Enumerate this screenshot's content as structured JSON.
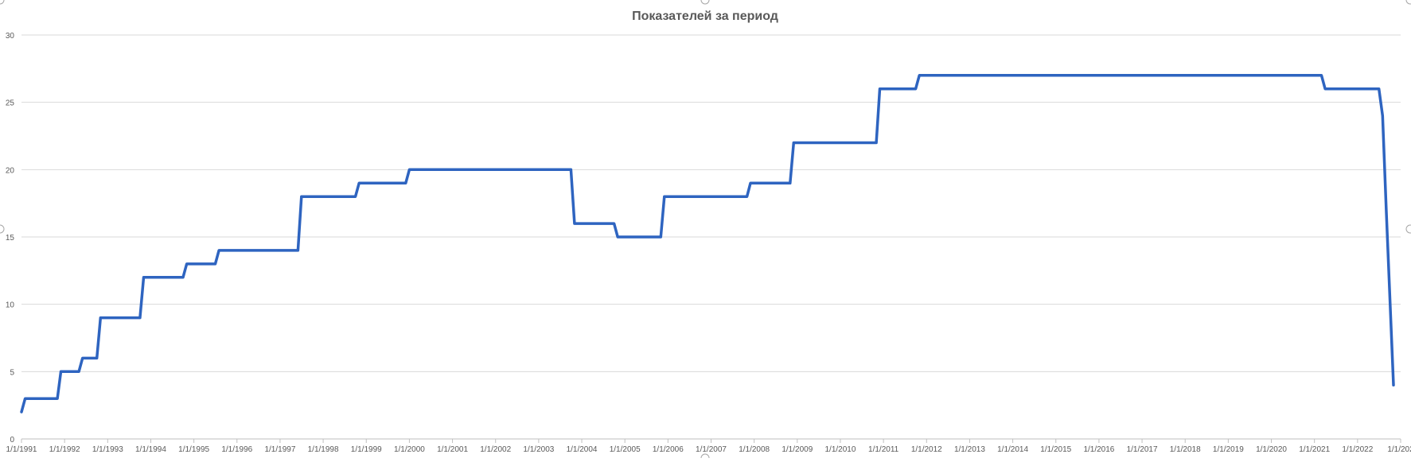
{
  "colors": {
    "series": "#2e64c0",
    "grid": "#d9d9d9",
    "text": "#595959"
  },
  "chart_data": {
    "type": "line",
    "title": "Показателей за период",
    "xlabel": "",
    "ylabel": "",
    "ylim": [
      0,
      30
    ],
    "yticks": [
      "0",
      "5",
      "10",
      "15",
      "20",
      "25",
      "30"
    ],
    "xlim": [
      "1991-01-01",
      "2023-01-01"
    ],
    "xtick_labels": [
      "1/1/1991",
      "1/1/1992",
      "1/1/1993",
      "1/1/1994",
      "1/1/1995",
      "1/1/1996",
      "1/1/1997",
      "1/1/1998",
      "1/1/1999",
      "1/1/2000",
      "1/1/2001",
      "1/1/2002",
      "1/1/2003",
      "1/1/2004",
      "1/1/2005",
      "1/1/2006",
      "1/1/2007",
      "1/1/2008",
      "1/1/2009",
      "1/1/2010",
      "1/1/2011",
      "1/1/2012",
      "1/1/2013",
      "1/1/2014",
      "1/1/2015",
      "1/1/2016",
      "1/1/2017",
      "1/1/2018",
      "1/1/2019",
      "1/1/2020",
      "1/1/2021",
      "1/1/2022",
      "1/1/202"
    ],
    "grid": true,
    "legend": "none",
    "series": [
      {
        "x": [
          "1991-01-01",
          "1991-02-01",
          "1991-11-01",
          "1991-12-01",
          "1992-05-01",
          "1992-06-01",
          "1992-10-01",
          "1992-11-01",
          "1993-10-01",
          "1993-11-01",
          "1994-10-01",
          "1994-11-01",
          "1995-07-01",
          "1995-08-01",
          "1997-06-01",
          "1997-07-01",
          "1998-10-01",
          "1998-11-01",
          "1999-12-01",
          "2000-01-01",
          "2003-10-01",
          "2003-11-01",
          "2004-10-01",
          "2004-11-01",
          "2005-11-01",
          "2005-12-01",
          "2007-11-01",
          "2007-12-01",
          "2008-11-01",
          "2008-12-01",
          "2010-11-01",
          "2010-12-01",
          "2011-10-01",
          "2011-11-01",
          "2021-03-01",
          "2021-04-01",
          "2022-07-01",
          "2022-08-01",
          "2022-09-01",
          "2022-11-01"
        ],
        "values": [
          2,
          3,
          3,
          5,
          5,
          6,
          6,
          9,
          9,
          12,
          12,
          13,
          13,
          14,
          14,
          18,
          18,
          19,
          19,
          20,
          20,
          16,
          16,
          15,
          15,
          18,
          18,
          19,
          19,
          22,
          22,
          26,
          26,
          27,
          27,
          26,
          26,
          24,
          17,
          4
        ]
      }
    ]
  }
}
